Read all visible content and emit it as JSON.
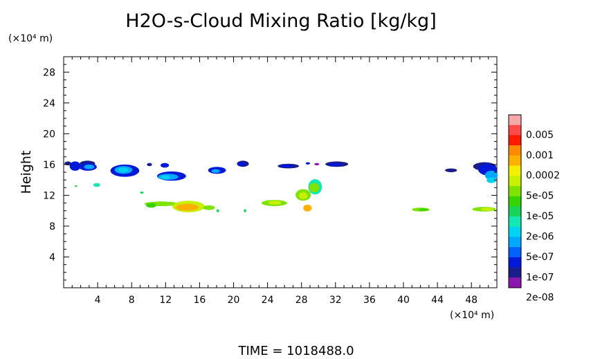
{
  "chart_data": {
    "type": "heatmap",
    "title": "H2O-s-Cloud Mixing Ratio [kg/kg]",
    "xlabel": "(×10⁴ m)",
    "ylabel": "Height",
    "y_unit_label": "(×10⁴ m)",
    "footer": "TIME = 1018488.0",
    "xlim": [
      0,
      51
    ],
    "ylim": [
      0,
      30
    ],
    "x_ticks": [
      4,
      8,
      12,
      16,
      20,
      24,
      28,
      32,
      36,
      40,
      44,
      48
    ],
    "y_ticks": [
      4,
      8,
      12,
      16,
      20,
      24,
      28
    ],
    "legend": {
      "placement": "right",
      "labels": [
        "0.005",
        "0.001",
        "0.0002",
        "5e-05",
        "1e-05",
        "2e-06",
        "5e-07",
        "1e-07",
        "2e-08"
      ],
      "colors": [
        "#f7a8a8",
        "#ff4a4a",
        "#ff1a00",
        "#ff8c00",
        "#ffb000",
        "#f2ef00",
        "#c8f000",
        "#7fe300",
        "#35d400",
        "#18d45a",
        "#13e7b2",
        "#00d3f2",
        "#00a9ff",
        "#0061ff",
        "#0018d8",
        "#1b1e8a",
        "#8b17b0"
      ]
    },
    "cloud_regions": [
      {
        "x": 0.1,
        "y": 15.9,
        "w": 0.8,
        "h": 0.5,
        "color": "#1b1e8a"
      },
      {
        "x": 0.7,
        "y": 15.2,
        "w": 1.3,
        "h": 1.2,
        "color": "#0018d8"
      },
      {
        "x": 1.9,
        "y": 15.8,
        "w": 1.8,
        "h": 0.7,
        "color": "#1b1e8a"
      },
      {
        "x": 1.8,
        "y": 15.2,
        "w": 2.1,
        "h": 1.0,
        "color": "#0018d8"
      },
      {
        "x": 2.4,
        "y": 15.4,
        "w": 1.2,
        "h": 0.6,
        "color": "#00a9ff"
      },
      {
        "x": 5.5,
        "y": 14.4,
        "w": 3.4,
        "h": 1.6,
        "color": "#0018d8"
      },
      {
        "x": 6.0,
        "y": 14.8,
        "w": 2.1,
        "h": 1.0,
        "color": "#00a9ff"
      },
      {
        "x": 6.4,
        "y": 15.0,
        "w": 1.2,
        "h": 0.6,
        "color": "#00d3f2"
      },
      {
        "x": 9.8,
        "y": 15.8,
        "w": 0.6,
        "h": 0.4,
        "color": "#1b1e8a"
      },
      {
        "x": 11.4,
        "y": 15.6,
        "w": 1.0,
        "h": 0.6,
        "color": "#0018d8"
      },
      {
        "x": 11.0,
        "y": 13.9,
        "w": 3.4,
        "h": 1.2,
        "color": "#0018d8"
      },
      {
        "x": 11.1,
        "y": 14.0,
        "w": 2.4,
        "h": 0.8,
        "color": "#00a9ff"
      },
      {
        "x": 11.4,
        "y": 14.1,
        "w": 1.1,
        "h": 0.5,
        "color": "#00d3f2"
      },
      {
        "x": 17.0,
        "y": 14.8,
        "w": 2.1,
        "h": 0.9,
        "color": "#0018d8"
      },
      {
        "x": 17.4,
        "y": 14.9,
        "w": 1.0,
        "h": 0.5,
        "color": "#00a9ff"
      },
      {
        "x": 20.4,
        "y": 15.7,
        "w": 1.4,
        "h": 0.8,
        "color": "#1b1e8a"
      },
      {
        "x": 20.5,
        "y": 15.8,
        "w": 0.9,
        "h": 0.5,
        "color": "#0018d8"
      },
      {
        "x": 25.2,
        "y": 15.5,
        "w": 2.5,
        "h": 0.6,
        "color": "#1b1e8a"
      },
      {
        "x": 25.5,
        "y": 15.6,
        "w": 1.5,
        "h": 0.4,
        "color": "#0018d8"
      },
      {
        "x": 28.5,
        "y": 16.0,
        "w": 0.5,
        "h": 0.3,
        "color": "#0018d8"
      },
      {
        "x": 29.5,
        "y": 15.9,
        "w": 0.6,
        "h": 0.3,
        "color": "#8b17b0"
      },
      {
        "x": 30.8,
        "y": 15.7,
        "w": 2.7,
        "h": 0.7,
        "color": "#1b1e8a"
      },
      {
        "x": 31.2,
        "y": 15.8,
        "w": 1.5,
        "h": 0.4,
        "color": "#0018d8"
      },
      {
        "x": 44.9,
        "y": 15.0,
        "w": 1.4,
        "h": 0.5,
        "color": "#1b1e8a"
      },
      {
        "x": 48.2,
        "y": 15.2,
        "w": 2.7,
        "h": 1.1,
        "color": "#1b1e8a"
      },
      {
        "x": 48.8,
        "y": 14.6,
        "w": 2.2,
        "h": 1.5,
        "color": "#0018d8"
      },
      {
        "x": 49.6,
        "y": 14.0,
        "w": 1.5,
        "h": 1.2,
        "color": "#00a9ff"
      },
      {
        "x": 49.8,
        "y": 13.6,
        "w": 1.1,
        "h": 0.7,
        "color": "#00d3f2"
      },
      {
        "x": 3.5,
        "y": 13.1,
        "w": 0.8,
        "h": 0.5,
        "color": "#13e7b2"
      },
      {
        "x": 1.3,
        "y": 13.1,
        "w": 0.3,
        "h": 0.2,
        "color": "#18d45a"
      },
      {
        "x": 9.0,
        "y": 12.2,
        "w": 0.4,
        "h": 0.3,
        "color": "#18d45a"
      },
      {
        "x": 9.5,
        "y": 10.6,
        "w": 4.0,
        "h": 0.6,
        "color": "#7fe300"
      },
      {
        "x": 9.7,
        "y": 10.4,
        "w": 1.2,
        "h": 0.6,
        "color": "#35d400"
      },
      {
        "x": 12.8,
        "y": 9.8,
        "w": 3.8,
        "h": 1.5,
        "color": "#c8f000"
      },
      {
        "x": 13.2,
        "y": 10.0,
        "w": 2.7,
        "h": 0.9,
        "color": "#ffb000"
      },
      {
        "x": 16.4,
        "y": 10.1,
        "w": 1.4,
        "h": 0.6,
        "color": "#7fe300"
      },
      {
        "x": 18.0,
        "y": 9.8,
        "w": 0.3,
        "h": 0.4,
        "color": "#18d45a"
      },
      {
        "x": 21.2,
        "y": 9.8,
        "w": 0.3,
        "h": 0.4,
        "color": "#18d45a"
      },
      {
        "x": 23.3,
        "y": 10.6,
        "w": 3.0,
        "h": 0.8,
        "color": "#7fe300"
      },
      {
        "x": 24.1,
        "y": 10.8,
        "w": 1.5,
        "h": 0.5,
        "color": "#c8f000"
      },
      {
        "x": 27.3,
        "y": 11.3,
        "w": 1.8,
        "h": 1.5,
        "color": "#7fe300"
      },
      {
        "x": 27.7,
        "y": 11.5,
        "w": 1.0,
        "h": 0.9,
        "color": "#c8f000"
      },
      {
        "x": 28.8,
        "y": 12.1,
        "w": 1.6,
        "h": 2.0,
        "color": "#13e7b2"
      },
      {
        "x": 28.9,
        "y": 12.4,
        "w": 1.2,
        "h": 1.2,
        "color": "#7fe300"
      },
      {
        "x": 28.2,
        "y": 9.9,
        "w": 1.0,
        "h": 0.9,
        "color": "#ffb000"
      },
      {
        "x": 41.0,
        "y": 9.9,
        "w": 2.1,
        "h": 0.5,
        "color": "#7fe300"
      },
      {
        "x": 41.8,
        "y": 10.0,
        "w": 1.1,
        "h": 0.3,
        "color": "#35d400"
      },
      {
        "x": 48.1,
        "y": 9.9,
        "w": 2.8,
        "h": 0.6,
        "color": "#7fe300"
      },
      {
        "x": 49.1,
        "y": 10.0,
        "w": 1.5,
        "h": 0.4,
        "color": "#c8f000"
      }
    ]
  }
}
